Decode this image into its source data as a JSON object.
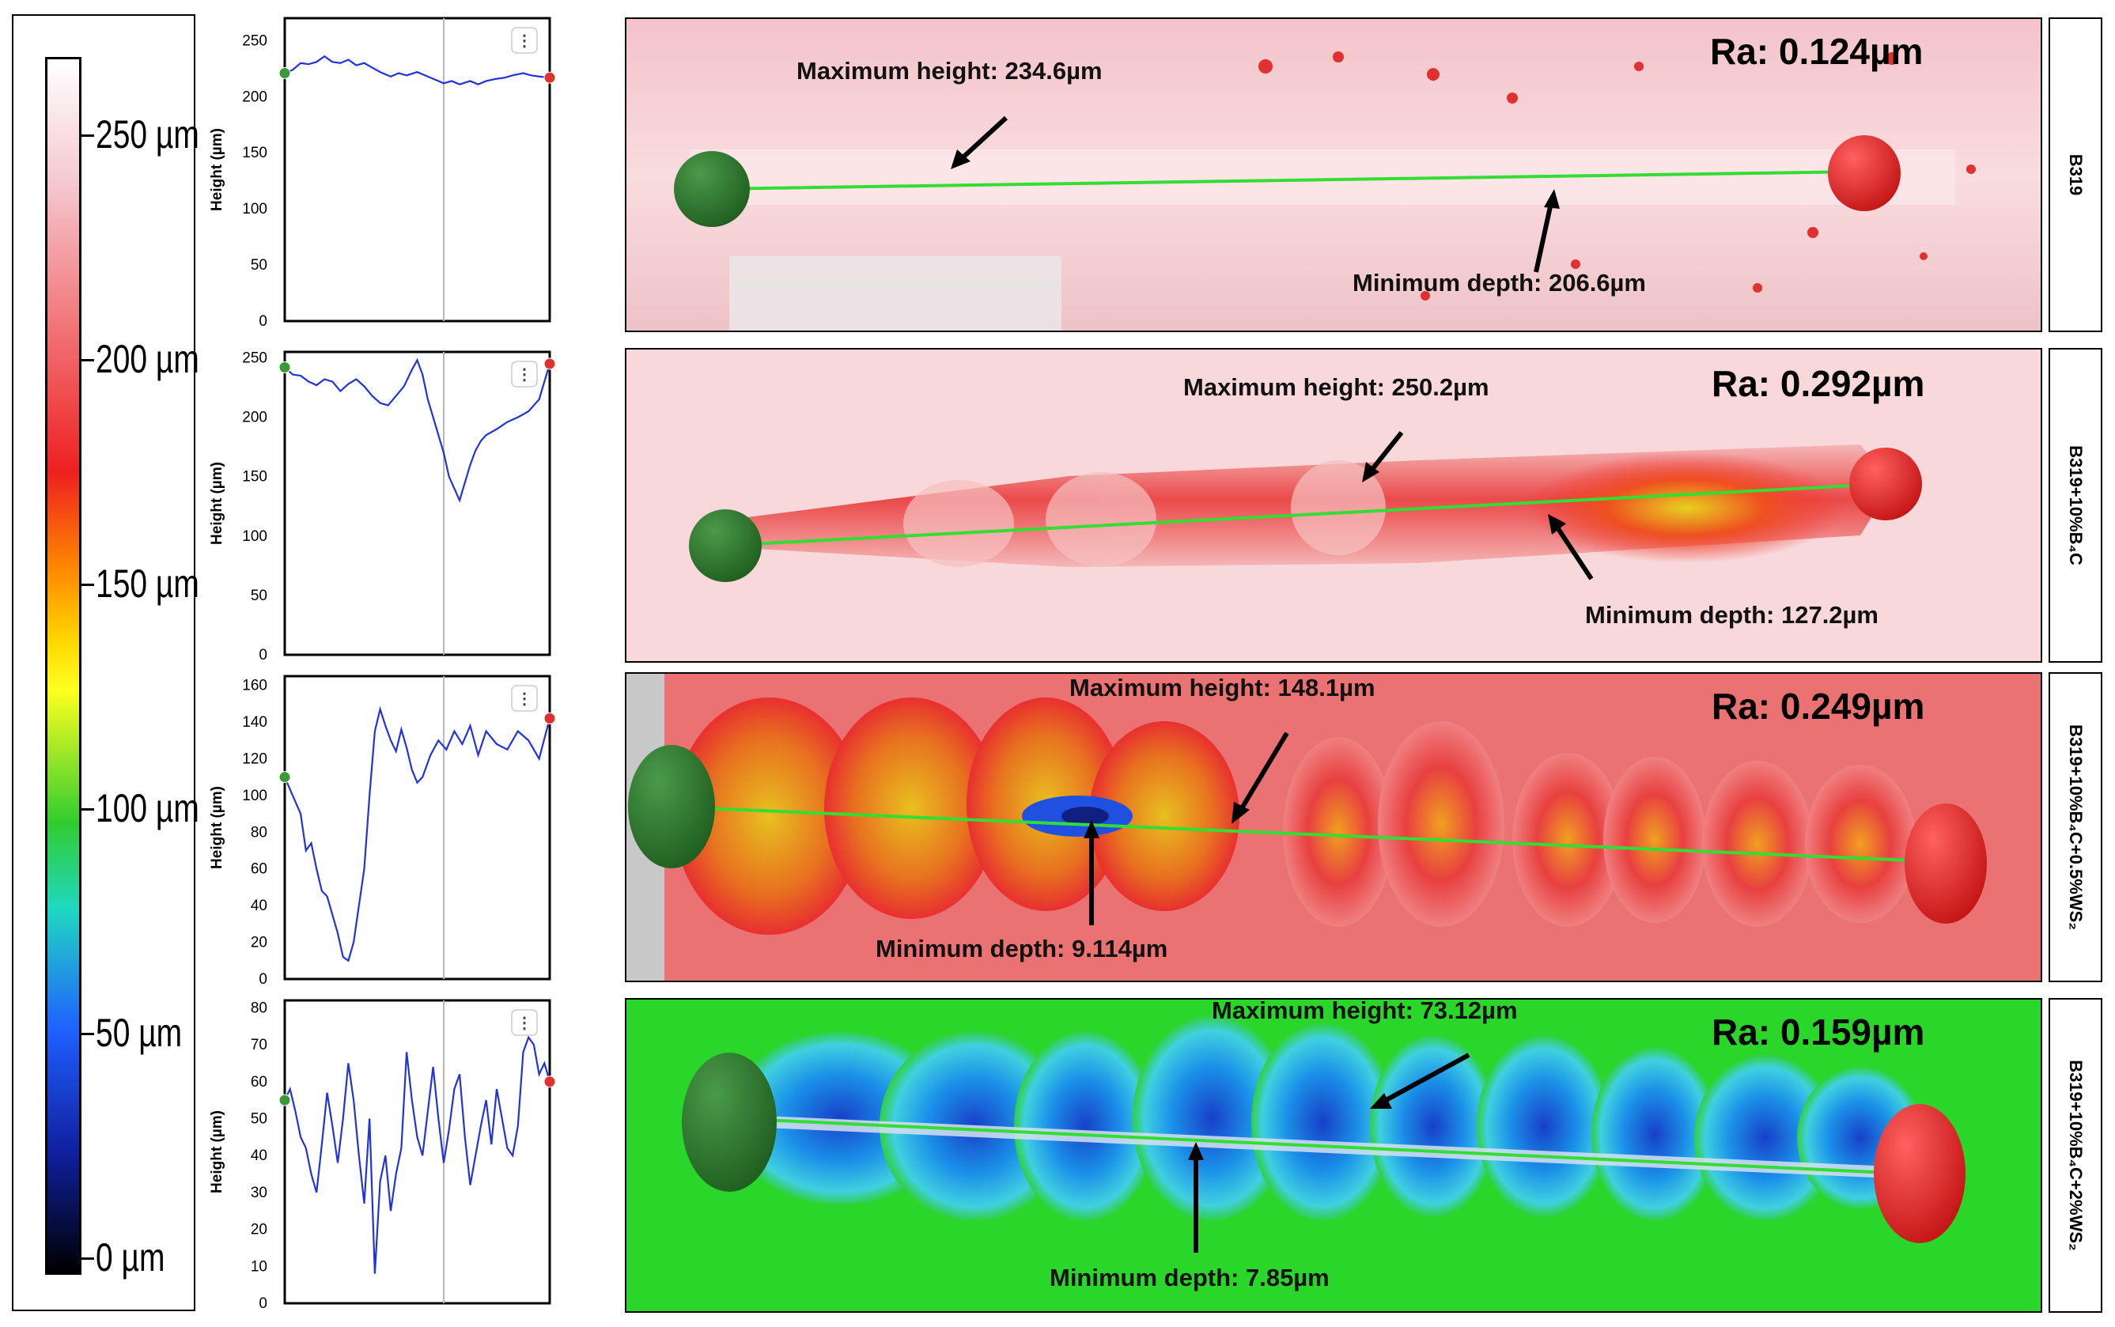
{
  "colorbar": {
    "ticks": [
      "250 µm",
      "200 µm",
      "150 µm",
      "100 µm",
      "50 µm",
      "0 µm"
    ]
  },
  "menu_icon": "⋮",
  "panels": [
    {
      "sample": "B319",
      "ra": "Ra: 0.124µm",
      "max_label": "Maximum height: 234.6µm",
      "min_label": "Minimum depth: 206.6µm",
      "background": "#f6c8cc"
    },
    {
      "sample": "B319+10%B₄C",
      "ra": "Ra: 0.292µm",
      "max_label": "Maximum height: 250.2µm",
      "min_label": "Minimum depth: 127.2µm",
      "background": "#f8d4d6"
    },
    {
      "sample": "B319+10%B₄C+0.5%WS₂",
      "ra": "Ra: 0.249µm",
      "max_label": "Maximum height: 148.1µm",
      "min_label": "Minimum depth: 9.114µm",
      "background": "#e86b6b"
    },
    {
      "sample": "B319+10%B₄C+2%WS₂",
      "ra": "Ra: 0.159µm",
      "max_label": "Maximum height: 73.12µm",
      "min_label": "Minimum depth: 7.85µm",
      "background": "#27d627"
    }
  ],
  "chart_data": [
    {
      "type": "line",
      "title": "",
      "xlabel": "",
      "ylabel": "Height (µm)",
      "ylim": [
        0,
        270
      ],
      "yticks": [
        0,
        50,
        100,
        150,
        200,
        250
      ],
      "x": [
        0,
        3,
        6,
        9,
        12,
        15,
        18,
        21,
        24,
        27,
        30,
        33,
        36,
        40,
        43,
        46,
        50,
        53,
        56,
        60,
        63,
        66,
        70,
        73,
        76,
        80,
        83,
        86,
        90,
        93,
        96,
        100
      ],
      "y": [
        221,
        224,
        230,
        229,
        231,
        236,
        231,
        230,
        233,
        228,
        230,
        226,
        222,
        218,
        221,
        219,
        222,
        219,
        216,
        212,
        214,
        211,
        214,
        211,
        214,
        216,
        217,
        219,
        221,
        219,
        218,
        217
      ]
    },
    {
      "type": "line",
      "title": "",
      "xlabel": "",
      "ylabel": "Height (µm)",
      "ylim": [
        0,
        255
      ],
      "yticks": [
        0,
        50,
        100,
        150,
        200,
        250
      ],
      "x": [
        0,
        3,
        6,
        9,
        12,
        15,
        18,
        21,
        24,
        27,
        30,
        33,
        36,
        39,
        42,
        45,
        48,
        50,
        52,
        54,
        56,
        58,
        60,
        62,
        64,
        66,
        68,
        70,
        72,
        74,
        76,
        80,
        84,
        88,
        92,
        96,
        100
      ],
      "y": [
        242,
        236,
        235,
        230,
        227,
        232,
        230,
        222,
        228,
        232,
        226,
        218,
        212,
        210,
        218,
        226,
        240,
        248,
        236,
        215,
        200,
        185,
        170,
        150,
        140,
        130,
        145,
        160,
        172,
        180,
        185,
        190,
        196,
        200,
        205,
        215,
        245
      ]
    },
    {
      "type": "line",
      "title": "",
      "xlabel": "",
      "ylabel": "Height (µm)",
      "ylim": [
        0,
        165
      ],
      "yticks": [
        0,
        20,
        40,
        60,
        80,
        100,
        120,
        140,
        160
      ],
      "x": [
        0,
        3,
        6,
        8,
        10,
        12,
        14,
        16,
        18,
        20,
        22,
        24,
        26,
        28,
        30,
        32,
        34,
        36,
        38,
        40,
        42,
        44,
        46,
        48,
        50,
        52,
        55,
        58,
        61,
        64,
        67,
        70,
        73,
        76,
        80,
        84,
        88,
        92,
        96,
        100
      ],
      "y": [
        110,
        100,
        90,
        70,
        74,
        60,
        48,
        45,
        35,
        25,
        12,
        10,
        20,
        40,
        60,
        100,
        135,
        147,
        138,
        130,
        124,
        136,
        126,
        114,
        107,
        110,
        122,
        130,
        125,
        135,
        128,
        138,
        122,
        135,
        128,
        125,
        135,
        130,
        120,
        142
      ]
    },
    {
      "type": "line",
      "title": "",
      "xlabel": "",
      "ylabel": "Height (µm)",
      "ylim": [
        0,
        82
      ],
      "yticks": [
        0,
        10,
        20,
        30,
        40,
        50,
        60,
        70,
        80
      ],
      "x": [
        0,
        2,
        4,
        6,
        8,
        10,
        12,
        14,
        16,
        18,
        20,
        22,
        24,
        26,
        28,
        30,
        32,
        34,
        36,
        38,
        40,
        42,
        44,
        46,
        48,
        50,
        52,
        54,
        56,
        58,
        60,
        62,
        64,
        66,
        68,
        70,
        72,
        74,
        76,
        78,
        80,
        82,
        84,
        86,
        88,
        90,
        92,
        94,
        96,
        98,
        100
      ],
      "y": [
        55,
        58,
        52,
        45,
        42,
        35,
        30,
        43,
        57,
        48,
        38,
        50,
        65,
        55,
        40,
        27,
        50,
        8,
        33,
        40,
        25,
        35,
        42,
        68,
        55,
        45,
        40,
        52,
        64,
        50,
        38,
        47,
        58,
        62,
        45,
        32,
        40,
        48,
        55,
        43,
        58,
        50,
        42,
        40,
        48,
        68,
        72,
        70,
        62,
        65,
        60
      ]
    }
  ]
}
